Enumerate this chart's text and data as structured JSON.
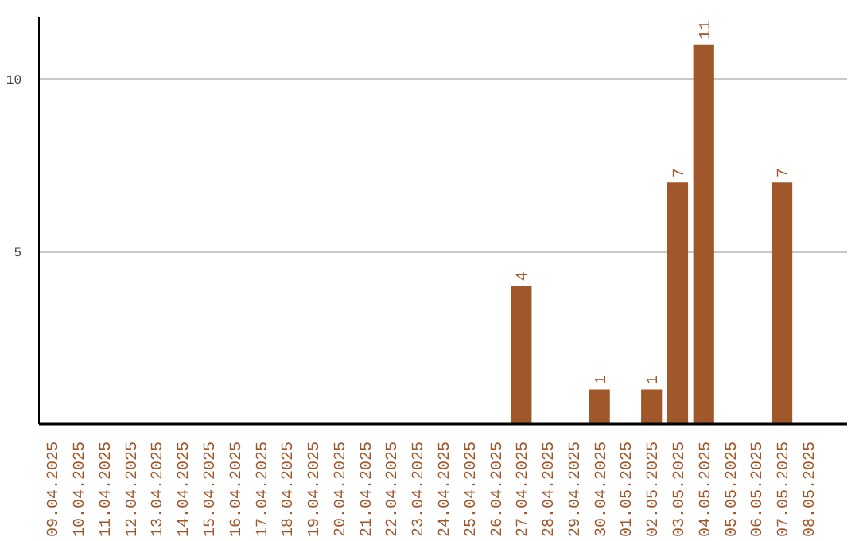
{
  "chart_data": {
    "type": "bar",
    "categories": [
      "09.04.2025",
      "10.04.2025",
      "11.04.2025",
      "12.04.2025",
      "13.04.2025",
      "14.04.2025",
      "15.04.2025",
      "16.04.2025",
      "17.04.2025",
      "18.04.2025",
      "19.04.2025",
      "20.04.2025",
      "21.04.2025",
      "22.04.2025",
      "23.04.2025",
      "24.04.2025",
      "25.04.2025",
      "26.04.2025",
      "27.04.2025",
      "28.04.2025",
      "29.04.2025",
      "30.04.2025",
      "01.05.2025",
      "02.05.2025",
      "03.05.2025",
      "04.05.2025",
      "05.05.2025",
      "06.05.2025",
      "07.05.2025",
      "08.05.2025"
    ],
    "values": [
      0,
      0,
      0,
      0,
      0,
      0,
      0,
      0,
      0,
      0,
      0,
      0,
      0,
      0,
      0,
      0,
      0,
      0,
      4,
      0,
      0,
      1,
      0,
      1,
      7,
      11,
      0,
      0,
      7,
      0
    ],
    "value_labels": [
      null,
      null,
      null,
      null,
      null,
      null,
      null,
      null,
      null,
      null,
      null,
      null,
      null,
      null,
      null,
      null,
      null,
      null,
      "4",
      null,
      null,
      "1",
      null,
      "1",
      "7",
      "11",
      null,
      null,
      "7",
      null
    ],
    "color": "#a0572a",
    "ylim": [
      0,
      11.8
    ],
    "yticks": [
      5,
      10
    ],
    "grid": "y"
  }
}
